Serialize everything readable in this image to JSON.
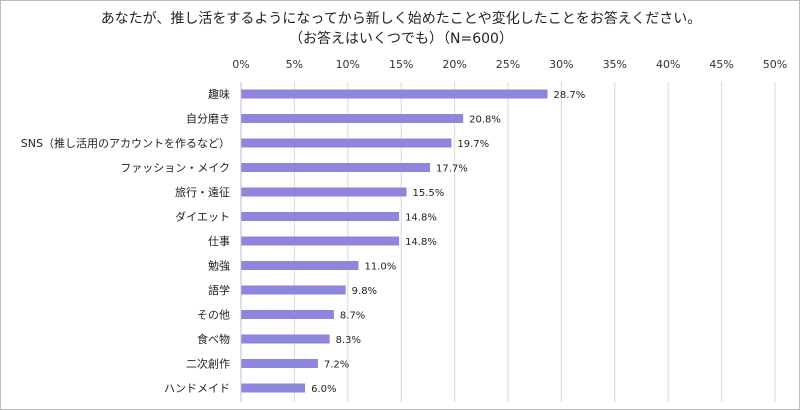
{
  "chart_data": {
    "type": "bar",
    "orientation": "horizontal",
    "title_line1": "あなたが、推し活をするようになってから新しく始めたことや変化したことをお答えください。",
    "title_line2": "（お答えはいくつでも）（N=600）",
    "categories": [
      "趣味",
      "自分磨き",
      "SNS（推し活用のアカウントを作るなど）",
      "ファッション・メイク",
      "旅行・遠征",
      "ダイエット",
      "仕事",
      "勉強",
      "語学",
      "その他",
      "食べ物",
      "二次創作",
      "ハンドメイド"
    ],
    "values": [
      28.7,
      20.8,
      19.7,
      17.7,
      15.5,
      14.8,
      14.8,
      11.0,
      9.8,
      8.7,
      8.3,
      7.2,
      6.0
    ],
    "value_labels": [
      "28.7%",
      "20.8%",
      "19.7%",
      "17.7%",
      "15.5%",
      "14.8%",
      "14.8%",
      "11.0%",
      "9.8%",
      "8.7%",
      "8.3%",
      "7.2%",
      "6.0%"
    ],
    "xlim": [
      0,
      50
    ],
    "x_ticks": [
      "0%",
      "5%",
      "10%",
      "15%",
      "20%",
      "25%",
      "30%",
      "35%",
      "40%",
      "45%",
      "50%"
    ],
    "grid": true,
    "bar_color": "#8d86dc",
    "grid_color": "#d9d9d9"
  }
}
